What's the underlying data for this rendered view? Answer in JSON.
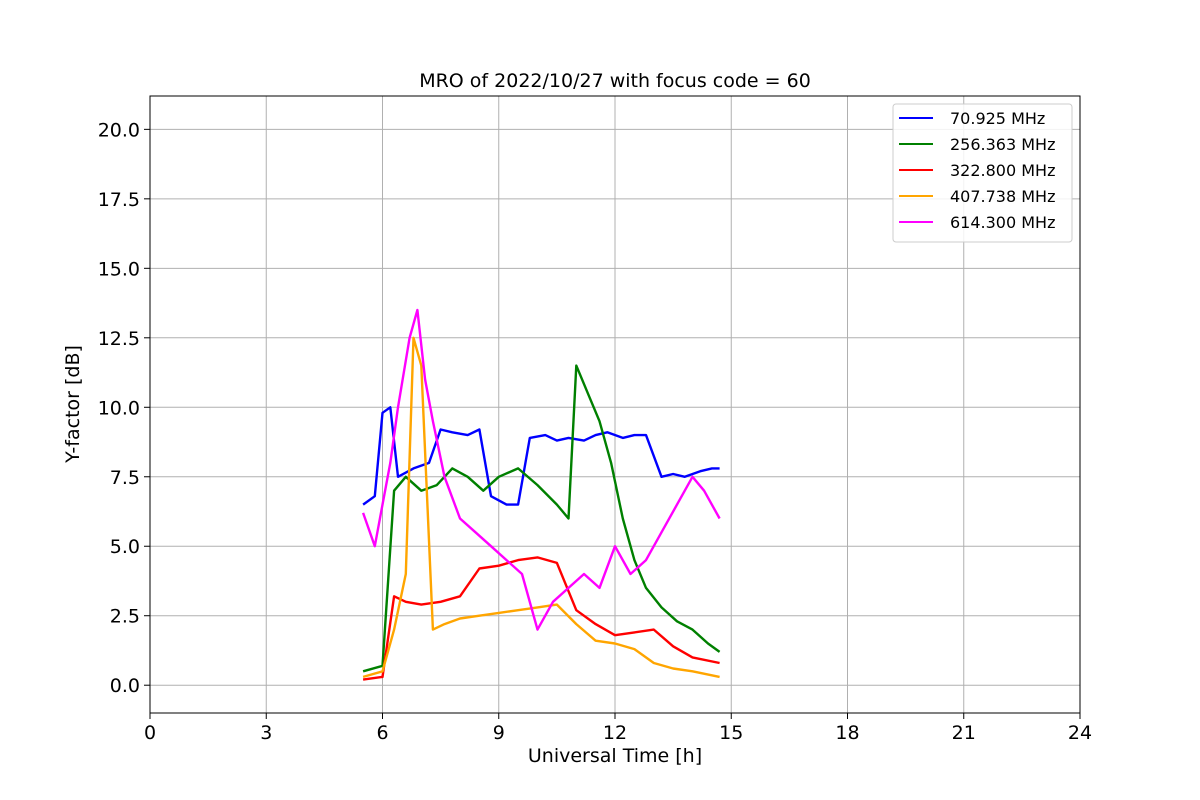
{
  "chart_data": {
    "type": "line",
    "title": "MRO of 2022/10/27 with focus code = 60",
    "xlabel": "Universal Time [h]",
    "ylabel": "Y-factor [dB]",
    "xlim": [
      0,
      24
    ],
    "ylim": [
      -1.0,
      21.2
    ],
    "xticks": [
      0,
      3,
      6,
      9,
      12,
      15,
      18,
      21,
      24
    ],
    "xtick_labels": [
      "0",
      "3",
      "6",
      "9",
      "12",
      "15",
      "18",
      "21",
      "24"
    ],
    "yticks": [
      0.0,
      2.5,
      5.0,
      7.5,
      10.0,
      12.5,
      15.0,
      17.5,
      20.0
    ],
    "ytick_labels": [
      "0.0",
      "2.5",
      "5.0",
      "7.5",
      "10.0",
      "12.5",
      "15.0",
      "17.5",
      "20.0"
    ],
    "grid": true,
    "legend_position": "top-right",
    "series": [
      {
        "name": "70.925 MHz",
        "color": "#0000ff",
        "x": [
          5.5,
          5.8,
          6.0,
          6.2,
          6.4,
          6.8,
          7.2,
          7.5,
          7.8,
          8.2,
          8.5,
          8.8,
          9.2,
          9.5,
          9.8,
          10.2,
          10.5,
          10.8,
          11.2,
          11.5,
          11.8,
          12.2,
          12.5,
          12.8,
          13.2,
          13.5,
          13.8,
          14.2,
          14.5,
          14.7
        ],
        "y": [
          6.5,
          6.8,
          9.8,
          10.0,
          7.5,
          7.8,
          8.0,
          9.2,
          9.1,
          9.0,
          9.2,
          6.8,
          6.5,
          6.5,
          8.9,
          9.0,
          8.8,
          8.9,
          8.8,
          9.0,
          9.1,
          8.9,
          9.0,
          9.0,
          7.5,
          7.6,
          7.5,
          7.7,
          7.8,
          7.8
        ]
      },
      {
        "name": "256.363 MHz",
        "color": "#008000",
        "x": [
          5.5,
          6.0,
          6.3,
          6.6,
          7.0,
          7.4,
          7.8,
          8.2,
          8.6,
          9.0,
          9.5,
          10.0,
          10.5,
          10.8,
          11.0,
          11.3,
          11.6,
          11.9,
          12.2,
          12.5,
          12.8,
          13.2,
          13.6,
          14.0,
          14.4,
          14.7
        ],
        "y": [
          0.5,
          0.7,
          7.0,
          7.5,
          7.0,
          7.2,
          7.8,
          7.5,
          7.0,
          7.5,
          7.8,
          7.2,
          6.5,
          6.0,
          11.5,
          10.5,
          9.5,
          8.0,
          6.0,
          4.5,
          3.5,
          2.8,
          2.3,
          2.0,
          1.5,
          1.2
        ]
      },
      {
        "name": "322.800 MHz",
        "color": "#ff0000",
        "x": [
          5.5,
          6.0,
          6.3,
          6.6,
          7.0,
          7.5,
          8.0,
          8.5,
          9.0,
          9.5,
          10.0,
          10.5,
          11.0,
          11.5,
          12.0,
          12.5,
          13.0,
          13.5,
          14.0,
          14.7
        ],
        "y": [
          0.2,
          0.3,
          3.2,
          3.0,
          2.9,
          3.0,
          3.2,
          4.2,
          4.3,
          4.5,
          4.6,
          4.4,
          2.7,
          2.2,
          1.8,
          1.9,
          2.0,
          1.4,
          1.0,
          0.8
        ]
      },
      {
        "name": "407.738 MHz",
        "color": "#ffa500",
        "x": [
          5.5,
          6.0,
          6.3,
          6.6,
          6.8,
          7.0,
          7.3,
          7.6,
          8.0,
          8.5,
          9.0,
          9.5,
          10.0,
          10.5,
          11.0,
          11.5,
          12.0,
          12.5,
          13.0,
          13.5,
          14.0,
          14.7
        ],
        "y": [
          0.3,
          0.5,
          2.0,
          4.0,
          12.5,
          11.5,
          2.0,
          2.2,
          2.4,
          2.5,
          2.6,
          2.7,
          2.8,
          2.9,
          2.2,
          1.6,
          1.5,
          1.3,
          0.8,
          0.6,
          0.5,
          0.3
        ]
      },
      {
        "name": "614.300 MHz",
        "color": "#ff00ff",
        "x": [
          5.5,
          5.8,
          6.0,
          6.2,
          6.4,
          6.7,
          6.9,
          7.1,
          7.3,
          7.6,
          8.0,
          8.4,
          8.8,
          9.2,
          9.6,
          10.0,
          10.4,
          10.8,
          11.2,
          11.6,
          12.0,
          12.4,
          12.8,
          13.2,
          13.6,
          14.0,
          14.3,
          14.7
        ],
        "y": [
          6.2,
          5.0,
          6.5,
          8.0,
          10.0,
          12.5,
          13.5,
          11.0,
          9.5,
          7.5,
          6.0,
          5.5,
          5.0,
          4.5,
          4.0,
          2.0,
          3.0,
          3.5,
          4.0,
          3.5,
          5.0,
          4.0,
          4.5,
          5.5,
          6.5,
          7.5,
          7.0,
          6.0
        ]
      }
    ]
  }
}
